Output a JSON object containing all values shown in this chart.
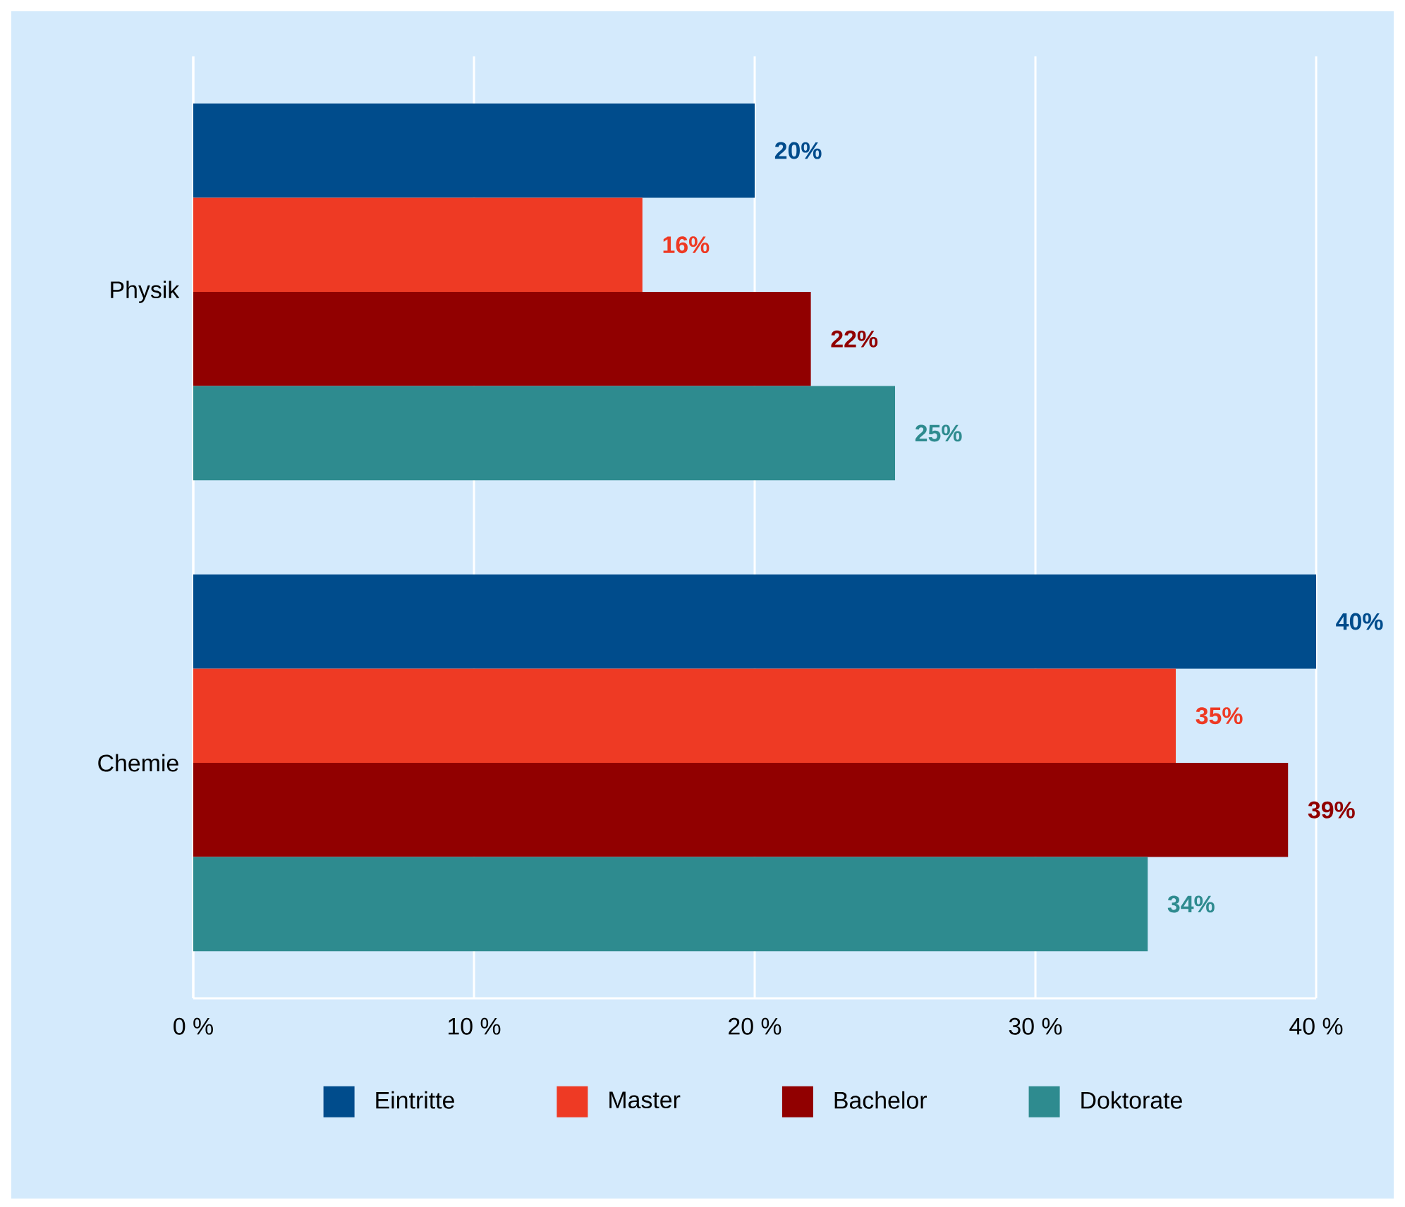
{
  "chart_data": {
    "type": "bar",
    "orientation": "horizontal",
    "categories": [
      "Physik",
      "Chemie"
    ],
    "series": [
      {
        "name": "Eintritte",
        "color": "#004c8c",
        "values": [
          20,
          40
        ],
        "value_labels": [
          "20%",
          "40%"
        ]
      },
      {
        "name": "Master",
        "color": "#ee3a24",
        "values": [
          16,
          35
        ],
        "value_labels": [
          "16%",
          "35%"
        ]
      },
      {
        "name": "Bachelor",
        "color": "#910000",
        "values": [
          22,
          39
        ],
        "value_labels": [
          "22%",
          "39%"
        ]
      },
      {
        "name": "Doktorate",
        "color": "#2e8b8f",
        "values": [
          25,
          34
        ],
        "value_labels": [
          "25%",
          "34%"
        ]
      }
    ],
    "xlim": [
      0,
      40
    ],
    "xticks": [
      {
        "value": 0,
        "label": "0 %"
      },
      {
        "value": 10,
        "label": "10 %"
      },
      {
        "value": 20,
        "label": "20 %"
      },
      {
        "value": 30,
        "label": "30 %"
      },
      {
        "value": 40,
        "label": "40 %"
      }
    ],
    "grid": "x",
    "legend": "bottom"
  }
}
